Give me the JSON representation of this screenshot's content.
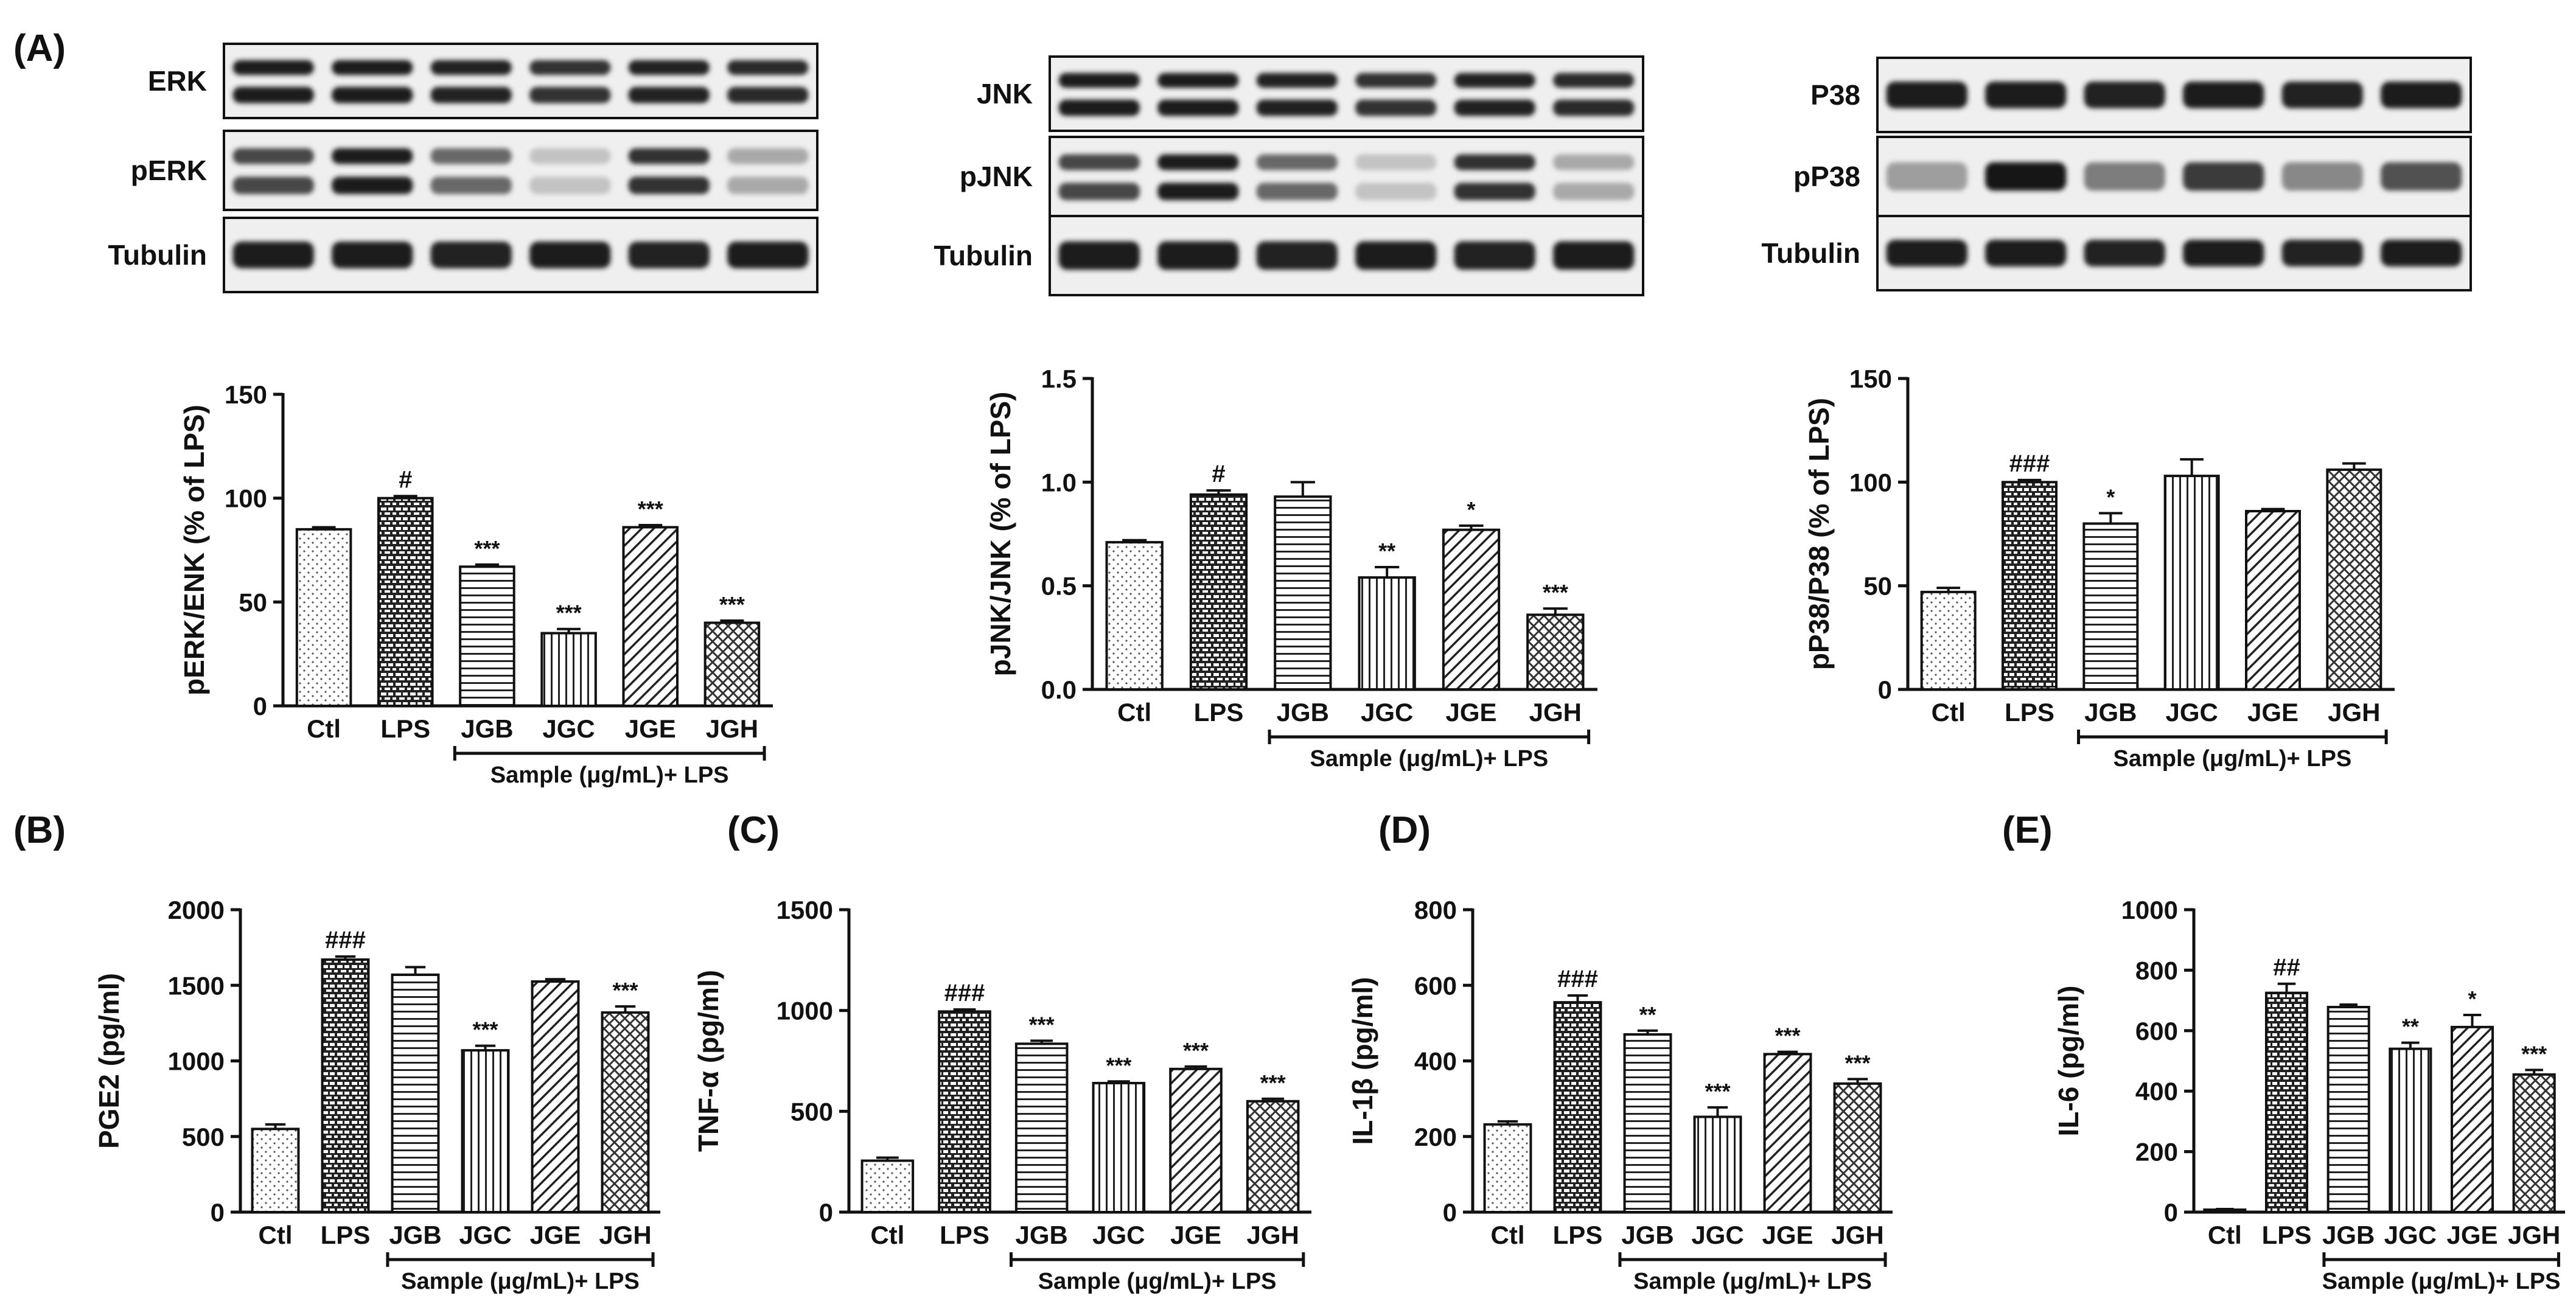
{
  "panel_labels": {
    "a": "(A)",
    "b": "(B)",
    "c": "(C)",
    "d": "(D)",
    "e": "(E)"
  },
  "bracket_label": "Sample (μg/mL)+ LPS",
  "blots": [
    {
      "rows": [
        {
          "label": "ERK",
          "pattern": "double"
        },
        {
          "label": "pERK",
          "pattern": "double_var"
        },
        {
          "label": "Tubulin",
          "pattern": "single"
        }
      ]
    },
    {
      "rows": [
        {
          "label": "JNK",
          "pattern": "double"
        },
        {
          "label": "pJNK",
          "pattern": "double_var"
        },
        {
          "label": "Tubulin",
          "pattern": "single"
        }
      ]
    },
    {
      "rows": [
        {
          "label": "P38",
          "pattern": "single"
        },
        {
          "label": "pP38",
          "pattern": "single_var"
        },
        {
          "label": "Tubulin",
          "pattern": "single"
        }
      ]
    }
  ],
  "chart_data": [
    {
      "type": "bar",
      "panel": "A1",
      "categories": [
        "Ctl",
        "LPS",
        "JGB",
        "JGC",
        "JGE",
        "JGH"
      ],
      "values": [
        85,
        100,
        67,
        35,
        86,
        40
      ],
      "errors": [
        1,
        1,
        1,
        2,
        1,
        1
      ],
      "annotations": [
        "",
        "#",
        "***",
        "***",
        "***",
        "***"
      ],
      "ylabel": "pERK/ENK (% of LPS)",
      "ylim": [
        0,
        150
      ],
      "yticks": [
        0,
        50,
        100,
        150
      ],
      "ytick_labels": [
        "0",
        "50",
        "100",
        "150"
      ]
    },
    {
      "type": "bar",
      "panel": "A2",
      "categories": [
        "Ctl",
        "LPS",
        "JGB",
        "JGC",
        "JGE",
        "JGH"
      ],
      "values": [
        0.71,
        0.94,
        0.93,
        0.54,
        0.77,
        0.36
      ],
      "errors": [
        0.01,
        0.02,
        0.07,
        0.05,
        0.02,
        0.03
      ],
      "annotations": [
        "",
        "#",
        "",
        "**",
        "*",
        "***"
      ],
      "ylabel": "pJNK/JNK (% of LPS)",
      "ylim": [
        0,
        1.5
      ],
      "yticks": [
        0,
        0.5,
        1.0,
        1.5
      ],
      "ytick_labels": [
        "0.0",
        "0.5",
        "1.0",
        "1.5"
      ]
    },
    {
      "type": "bar",
      "panel": "A3",
      "categories": [
        "Ctl",
        "LPS",
        "JGB",
        "JGC",
        "JGE",
        "JGH"
      ],
      "values": [
        47,
        100,
        80,
        103,
        86,
        106
      ],
      "errors": [
        2,
        1,
        5,
        8,
        1,
        3
      ],
      "annotations": [
        "",
        "###",
        "*",
        "",
        "",
        ""
      ],
      "ylabel": "pP38/P38 (% of LPS)",
      "ylim": [
        0,
        150
      ],
      "yticks": [
        0,
        50,
        100,
        150
      ],
      "ytick_labels": [
        "0",
        "50",
        "100",
        "150"
      ]
    },
    {
      "type": "bar",
      "panel": "B",
      "categories": [
        "Ctl",
        "LPS",
        "JGB",
        "JGC",
        "JGE",
        "JGH"
      ],
      "values": [
        550,
        1670,
        1570,
        1070,
        1525,
        1320
      ],
      "errors": [
        30,
        20,
        50,
        30,
        15,
        40
      ],
      "annotations": [
        "",
        "###",
        "",
        "***",
        "",
        "***"
      ],
      "ylabel": "PGE2 (pg/ml)",
      "ylim": [
        0,
        2000
      ],
      "yticks": [
        0,
        500,
        1000,
        1500,
        2000
      ],
      "ytick_labels": [
        "0",
        "500",
        "1000",
        "1500",
        "2000"
      ]
    },
    {
      "type": "bar",
      "panel": "C",
      "categories": [
        "Ctl",
        "LPS",
        "JGB",
        "JGC",
        "JGE",
        "JGH"
      ],
      "values": [
        255,
        995,
        835,
        640,
        710,
        550
      ],
      "errors": [
        15,
        10,
        15,
        8,
        12,
        12
      ],
      "annotations": [
        "",
        "###",
        "***",
        "***",
        "***",
        "***"
      ],
      "ylabel": "TNF-α (pg/ml)",
      "ylim": [
        0,
        1500
      ],
      "yticks": [
        0,
        500,
        1000,
        1500
      ],
      "ytick_labels": [
        "0",
        "500",
        "1000",
        "1500"
      ]
    },
    {
      "type": "bar",
      "panel": "D",
      "categories": [
        "Ctl",
        "LPS",
        "JGB",
        "JGC",
        "JGE",
        "JGH"
      ],
      "values": [
        232,
        555,
        470,
        252,
        418,
        340
      ],
      "errors": [
        8,
        18,
        10,
        25,
        6,
        12
      ],
      "annotations": [
        "",
        "###",
        "**",
        "***",
        "***",
        "***"
      ],
      "ylabel": "IL-1β (pg/ml)",
      "ylim": [
        0,
        800
      ],
      "yticks": [
        0,
        200,
        400,
        600,
        800
      ],
      "ytick_labels": [
        "0",
        "200",
        "400",
        "600",
        "800"
      ]
    },
    {
      "type": "bar",
      "panel": "E",
      "categories": [
        "Ctl",
        "LPS",
        "JGB",
        "JGC",
        "JGE",
        "JGH"
      ],
      "values": [
        8,
        725,
        678,
        540,
        612,
        455
      ],
      "errors": [
        2,
        30,
        8,
        20,
        40,
        15
      ],
      "annotations": [
        "",
        "##",
        "",
        "**",
        "*",
        "***"
      ],
      "ylabel": "IL-6 (pg/ml)",
      "ylim": [
        0,
        1000
      ],
      "yticks": [
        0,
        200,
        400,
        600,
        800,
        1000
      ],
      "ytick_labels": [
        "0",
        "200",
        "400",
        "600",
        "800",
        "1000"
      ]
    }
  ]
}
